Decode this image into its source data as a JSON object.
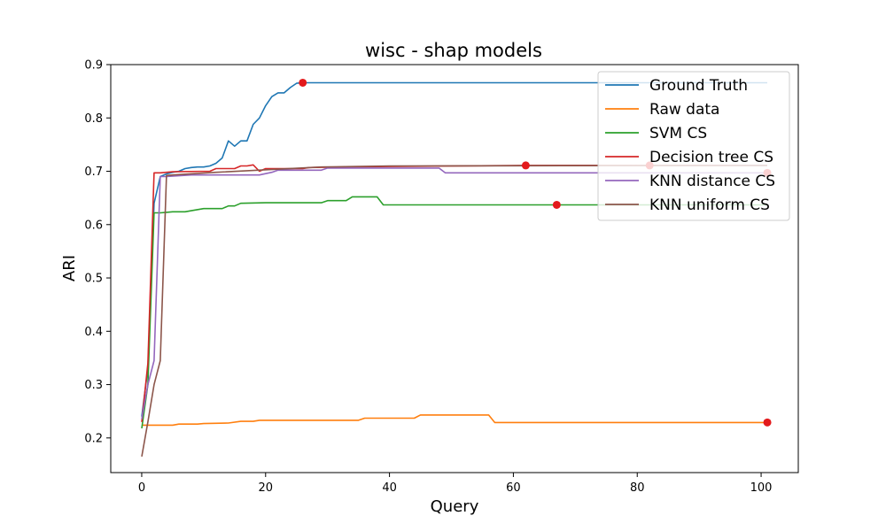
{
  "chart_data": {
    "type": "line",
    "title": "wisc - shap models",
    "xlabel": "Query",
    "ylabel": "ARI",
    "xlim": [
      -5,
      106
    ],
    "ylim": [
      0.135,
      0.9
    ],
    "xticks": [
      0,
      20,
      40,
      60,
      80,
      100
    ],
    "yticks": [
      0.2,
      0.3,
      0.4,
      0.5,
      0.6,
      0.7,
      0.8,
      0.9
    ],
    "grid": false,
    "legend_position": "top-right",
    "series": [
      {
        "name": "Ground Truth",
        "color": "#1f77b4",
        "points": [
          [
            0,
            0.24
          ],
          [
            1,
            0.33
          ],
          [
            2,
            0.64
          ],
          [
            3,
            0.69
          ],
          [
            4,
            0.695
          ],
          [
            5,
            0.698
          ],
          [
            6,
            0.7
          ],
          [
            7,
            0.705
          ],
          [
            8,
            0.707
          ],
          [
            9,
            0.708
          ],
          [
            10,
            0.708
          ],
          [
            11,
            0.71
          ],
          [
            12,
            0.715
          ],
          [
            13,
            0.725
          ],
          [
            14,
            0.757
          ],
          [
            15,
            0.747
          ],
          [
            16,
            0.757
          ],
          [
            17,
            0.757
          ],
          [
            18,
            0.788
          ],
          [
            19,
            0.8
          ],
          [
            20,
            0.823
          ],
          [
            21,
            0.84
          ],
          [
            22,
            0.847
          ],
          [
            23,
            0.847
          ],
          [
            24,
            0.857
          ],
          [
            25,
            0.865
          ],
          [
            26,
            0.866
          ],
          [
            40,
            0.866
          ],
          [
            60,
            0.866
          ],
          [
            80,
            0.866
          ],
          [
            101,
            0.866
          ]
        ],
        "marker": [
          26,
          0.866
        ]
      },
      {
        "name": "Raw data",
        "color": "#ff7f0e",
        "points": [
          [
            0,
            0.224
          ],
          [
            5,
            0.224
          ],
          [
            6,
            0.226
          ],
          [
            9,
            0.226
          ],
          [
            10,
            0.227
          ],
          [
            14,
            0.228
          ],
          [
            16,
            0.231
          ],
          [
            18,
            0.231
          ],
          [
            19,
            0.233
          ],
          [
            35,
            0.233
          ],
          [
            36,
            0.237
          ],
          [
            44,
            0.237
          ],
          [
            45,
            0.243
          ],
          [
            56,
            0.243
          ],
          [
            57,
            0.229
          ],
          [
            101,
            0.229
          ]
        ],
        "marker": [
          101,
          0.229
        ]
      },
      {
        "name": "SVM CS",
        "color": "#2ca02c",
        "points": [
          [
            0,
            0.218
          ],
          [
            1,
            0.3
          ],
          [
            2,
            0.622
          ],
          [
            3,
            0.622
          ],
          [
            4,
            0.623
          ],
          [
            5,
            0.624
          ],
          [
            7,
            0.624
          ],
          [
            8,
            0.626
          ],
          [
            10,
            0.63
          ],
          [
            13,
            0.63
          ],
          [
            14,
            0.635
          ],
          [
            15,
            0.635
          ],
          [
            16,
            0.64
          ],
          [
            20,
            0.641
          ],
          [
            29,
            0.641
          ],
          [
            30,
            0.645
          ],
          [
            33,
            0.645
          ],
          [
            34,
            0.652
          ],
          [
            38,
            0.652
          ],
          [
            39,
            0.637
          ],
          [
            101,
            0.637
          ]
        ],
        "marker": [
          67,
          0.637
        ]
      },
      {
        "name": "Decision tree CS",
        "color": "#d62728",
        "points": [
          [
            0,
            0.23
          ],
          [
            1,
            0.34
          ],
          [
            2,
            0.697
          ],
          [
            3,
            0.697
          ],
          [
            4,
            0.698
          ],
          [
            5,
            0.699
          ],
          [
            11,
            0.7
          ],
          [
            12,
            0.705
          ],
          [
            15,
            0.705
          ],
          [
            16,
            0.71
          ],
          [
            17,
            0.71
          ],
          [
            18,
            0.712
          ],
          [
            19,
            0.7
          ],
          [
            20,
            0.705
          ],
          [
            26,
            0.705
          ],
          [
            27,
            0.707
          ],
          [
            40,
            0.709
          ],
          [
            62,
            0.711
          ],
          [
            101,
            0.711
          ]
        ],
        "marker": [
          62,
          0.711
        ]
      },
      {
        "name": "KNN distance CS",
        "color": "#9467bd",
        "points": [
          [
            0,
            0.235
          ],
          [
            1,
            0.3
          ],
          [
            2,
            0.345
          ],
          [
            3,
            0.69
          ],
          [
            4,
            0.69
          ],
          [
            8,
            0.693
          ],
          [
            19,
            0.693
          ],
          [
            21,
            0.698
          ],
          [
            22,
            0.702
          ],
          [
            29,
            0.702
          ],
          [
            30,
            0.706
          ],
          [
            48,
            0.706
          ],
          [
            49,
            0.697
          ],
          [
            101,
            0.697
          ]
        ],
        "marker": [
          101,
          0.697
        ]
      },
      {
        "name": "KNN uniform CS",
        "color": "#8c564b",
        "points": [
          [
            0,
            0.165
          ],
          [
            1,
            0.23
          ],
          [
            2,
            0.3
          ],
          [
            3,
            0.345
          ],
          [
            4,
            0.692
          ],
          [
            5,
            0.693
          ],
          [
            12,
            0.698
          ],
          [
            29,
            0.708
          ],
          [
            40,
            0.71
          ],
          [
            101,
            0.711
          ]
        ],
        "marker": [
          82,
          0.711
        ]
      }
    ],
    "marker_color": "#e31a1c"
  }
}
